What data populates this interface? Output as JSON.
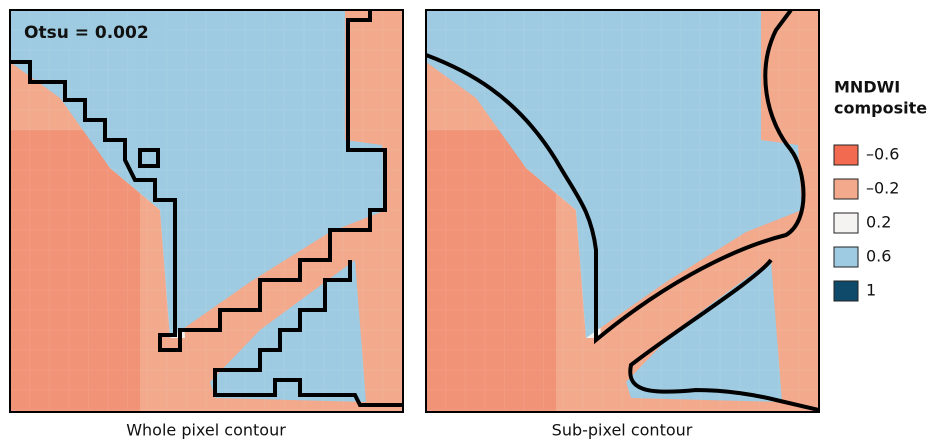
{
  "panels": [
    {
      "caption": "Whole pixel contour",
      "annotation": "Otsu = 0.002"
    },
    {
      "caption": "Sub-pixel contour"
    }
  ],
  "legend": {
    "title": [
      "MNDWI",
      "composite"
    ],
    "entries": [
      {
        "label": "–0.6",
        "color": "#f26b50"
      },
      {
        "label": "–0.2",
        "color": "#f2a98c"
      },
      {
        "label": "0.2",
        "color": "#f5f3f1"
      },
      {
        "label": "0.6",
        "color": "#9ecbe1"
      },
      {
        "label": "1",
        "color": "#0f4a6b"
      }
    ]
  }
}
